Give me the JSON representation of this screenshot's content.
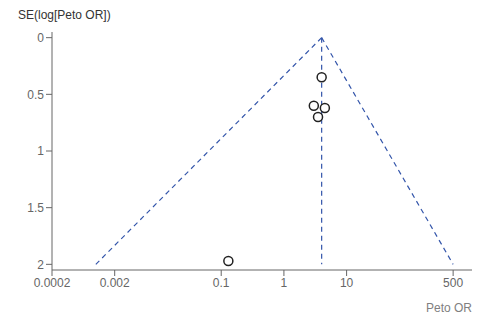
{
  "chart_data": {
    "type": "scatter",
    "log": "x",
    "grid": false,
    "x_label": "Peto OR",
    "y_label": "SE(log[Peto OR])",
    "xlim": [
      0.0002,
      1000
    ],
    "xticks": [
      0.0002,
      0.002,
      0.1,
      1,
      10,
      500
    ],
    "ylim": [
      2.05,
      -0.05
    ],
    "yticks": [
      0,
      0.5,
      1,
      1.5,
      2
    ],
    "series": [
      {
        "type": "line",
        "color": "#3355aa",
        "line_style": "dashed",
        "x": [
          4,
          0.001
        ],
        "values": [
          0,
          2
        ]
      },
      {
        "type": "line",
        "color": "#3355aa",
        "line_style": "dashed",
        "x": [
          4,
          500
        ],
        "values": [
          0,
          2
        ]
      },
      {
        "type": "line",
        "color": "#3355aa",
        "line_style": "dashed",
        "x": [
          4,
          4
        ],
        "values": [
          0,
          2
        ]
      },
      {
        "type": "scatter",
        "color": "#222222",
        "marker": "circle",
        "x": [
          0.13,
          3.0,
          4.0,
          4.5,
          3.5
        ],
        "values": [
          1.97,
          0.6,
          0.35,
          0.62,
          0.7
        ]
      }
    ]
  }
}
